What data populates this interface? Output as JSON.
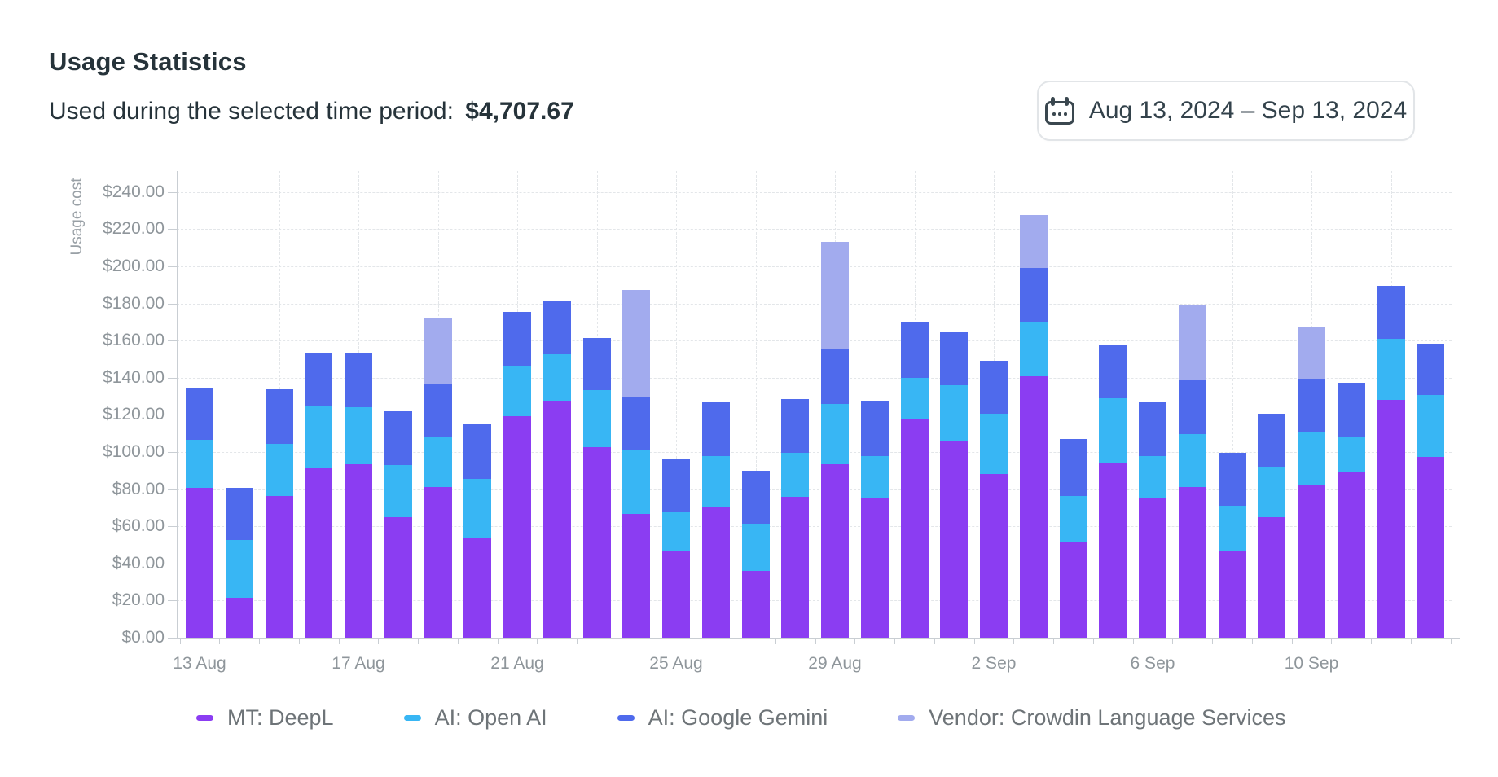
{
  "header": {
    "title": "Usage Statistics",
    "subtitle_label": "Used during the selected time period:",
    "subtitle_value": "$4,707.67"
  },
  "date_range": {
    "label": "Aug 13, 2024 – Sep 13, 2024",
    "icon": "calendar-icon"
  },
  "chart_data": {
    "type": "bar",
    "stacked": true,
    "ylabel": "Usage cost",
    "ylim": [
      0,
      240
    ],
    "y_tick_step": 20,
    "y_ticks": [
      "$0.00",
      "$20.00",
      "$40.00",
      "$60.00",
      "$80.00",
      "$100.00",
      "$120.00",
      "$140.00",
      "$160.00",
      "$180.00",
      "$200.00",
      "$220.00",
      "$240.00"
    ],
    "grid": "dashed",
    "legend_position": "bottom",
    "categories": [
      "13 Aug",
      "14 Aug",
      "15 Aug",
      "16 Aug",
      "17 Aug",
      "18 Aug",
      "19 Aug",
      "20 Aug",
      "21 Aug",
      "22 Aug",
      "23 Aug",
      "24 Aug",
      "25 Aug",
      "26 Aug",
      "27 Aug",
      "28 Aug",
      "29 Aug",
      "30 Aug",
      "31 Aug",
      "1 Sep",
      "2 Sep",
      "3 Sep",
      "4 Sep",
      "5 Sep",
      "6 Sep",
      "7 Sep",
      "8 Sep",
      "9 Sep",
      "10 Sep",
      "11 Sep",
      "12 Sep",
      "13 Sep"
    ],
    "x_ticks_shown": [
      "13 Aug",
      "17 Aug",
      "21 Aug",
      "25 Aug",
      "29 Aug",
      "2 Sep",
      "6 Sep",
      "10 Sep"
    ],
    "x_tick_every": 4,
    "series": [
      {
        "name": "MT: DeepL",
        "color": "#8b3df2",
        "values": [
          80.5,
          21.5,
          76.5,
          91.5,
          93.5,
          65,
          81,
          53.5,
          119.5,
          127.5,
          102.5,
          66.5,
          46.5,
          70.5,
          36,
          76,
          93.5,
          75,
          117.5,
          106,
          88,
          141,
          51.5,
          94.5,
          75.5,
          81,
          46.5,
          65,
          82.5,
          89,
          128,
          97.5
        ]
      },
      {
        "name": "AI: Open AI",
        "color": "#38b6f4",
        "values": [
          26,
          31,
          28,
          33.5,
          30.5,
          28,
          27,
          32,
          27,
          25,
          31,
          34.5,
          21,
          27.5,
          25.5,
          23.5,
          32.5,
          23,
          22.5,
          30,
          32.5,
          29,
          25,
          34.5,
          22.5,
          28.5,
          24.5,
          27,
          28.5,
          19.5,
          33,
          33
        ]
      },
      {
        "name": "AI: Google Gemini",
        "color": "#4f6aec",
        "values": [
          28,
          28,
          29.5,
          28.5,
          29,
          29,
          28.5,
          30,
          29,
          28.5,
          28,
          29,
          28.5,
          29,
          28.5,
          29,
          29.5,
          29.5,
          30,
          28.5,
          28.5,
          29,
          30.5,
          29,
          29,
          29,
          28.5,
          28.5,
          28.5,
          29,
          28.5,
          28
        ]
      },
      {
        "name": "Vendor: Crowdin Language Services",
        "color": "#a2abee",
        "values": [
          0,
          0,
          0,
          0,
          0,
          0,
          36,
          0,
          0,
          0,
          0,
          57.5,
          0,
          0,
          0,
          0,
          57.5,
          0,
          0,
          0,
          0,
          28.5,
          0,
          0,
          0,
          40.5,
          0,
          0,
          28,
          0,
          0,
          0
        ]
      }
    ]
  }
}
